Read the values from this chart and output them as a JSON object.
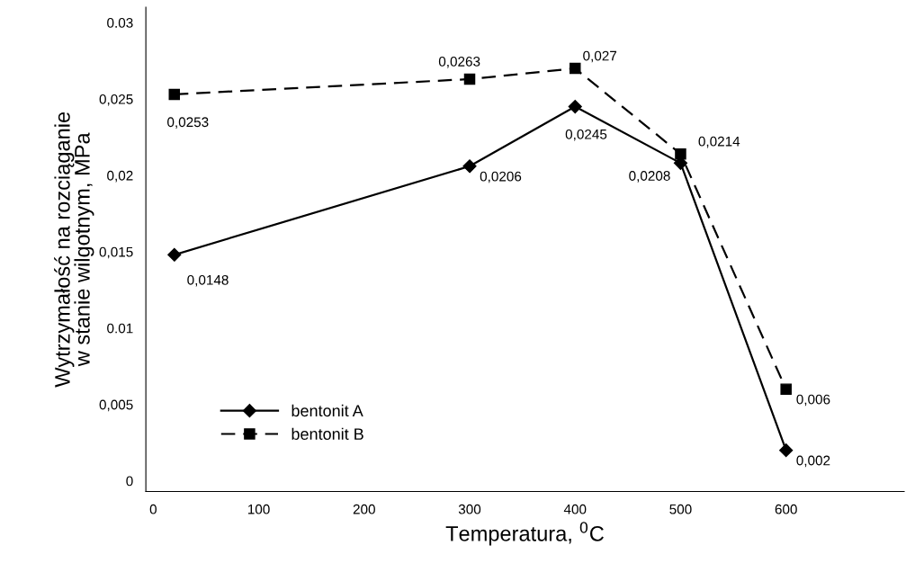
{
  "chart_data": {
    "type": "line",
    "xlabel": "Temperatura, $^{0}$C",
    "ylabel": "Wytrzymałość na rozciąganie\nw stanie wilgotnym, MPa",
    "x": [
      20,
      300,
      400,
      500,
      600
    ],
    "series": [
      {
        "name": "bentonit A",
        "color": "#000000",
        "marker": "diamond",
        "line_style": "solid",
        "values": [
          0.0148,
          0.0206,
          0.0245,
          0.0208,
          0.002
        ],
        "value_labels": [
          "0,0148",
          "0,0206",
          "0,0245",
          "0,0208",
          "0,002"
        ]
      },
      {
        "name": "bentonit B",
        "color": "#000000",
        "marker": "square",
        "line_style": "dashed",
        "values": [
          0.0253,
          0.0263,
          0.027,
          0.0214,
          0.006
        ],
        "value_labels": [
          "0,0253",
          "0,0263",
          "0,027",
          "0,0214",
          "0,006"
        ]
      }
    ],
    "xlim": [
      -7,
      712
    ],
    "ylim": [
      -0.0007,
      0.031
    ],
    "xticks": [
      0,
      100,
      200,
      300,
      400,
      500,
      600
    ],
    "yticks": [
      {
        "value": 0,
        "label": "0"
      },
      {
        "value": 0.005,
        "label": "0,005"
      },
      {
        "value": 0.01,
        "label": "0.01"
      },
      {
        "value": 0.015,
        "label": "0,015"
      },
      {
        "value": 0.02,
        "label": "0,02"
      },
      {
        "value": 0.025,
        "label": "0,025"
      },
      {
        "value": 0.03,
        "label": "0.03"
      }
    ],
    "legend": "bottom left",
    "grid": false
  }
}
